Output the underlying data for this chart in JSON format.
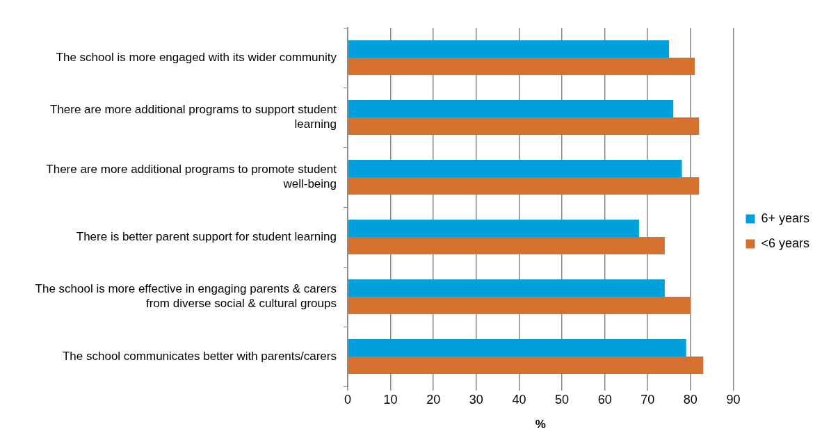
{
  "chart_data": {
    "type": "bar",
    "orientation": "horizontal",
    "xlabel": "%",
    "categories": [
      "The school is more engaged with its wider community",
      "There are more additional programs to support student learning",
      "There are more additional programs to promote student well-being",
      "There is better parent support for student learning",
      "The school is more effective in engaging parents & carers from diverse social & cultural groups",
      "The school communicates better with parents/carers"
    ],
    "series": [
      {
        "name": "6+ years",
        "color": "#00a0dc",
        "values": [
          75,
          76,
          78,
          68,
          74,
          79
        ]
      },
      {
        "name": "<6 years",
        "color": "#d5702f",
        "values": [
          81,
          82,
          82,
          74,
          80,
          83
        ]
      }
    ],
    "xlim": [
      0,
      90
    ],
    "xticks": [
      0,
      10,
      20,
      30,
      40,
      50,
      60,
      70,
      80,
      90
    ],
    "grid": "x",
    "legend": "right"
  }
}
